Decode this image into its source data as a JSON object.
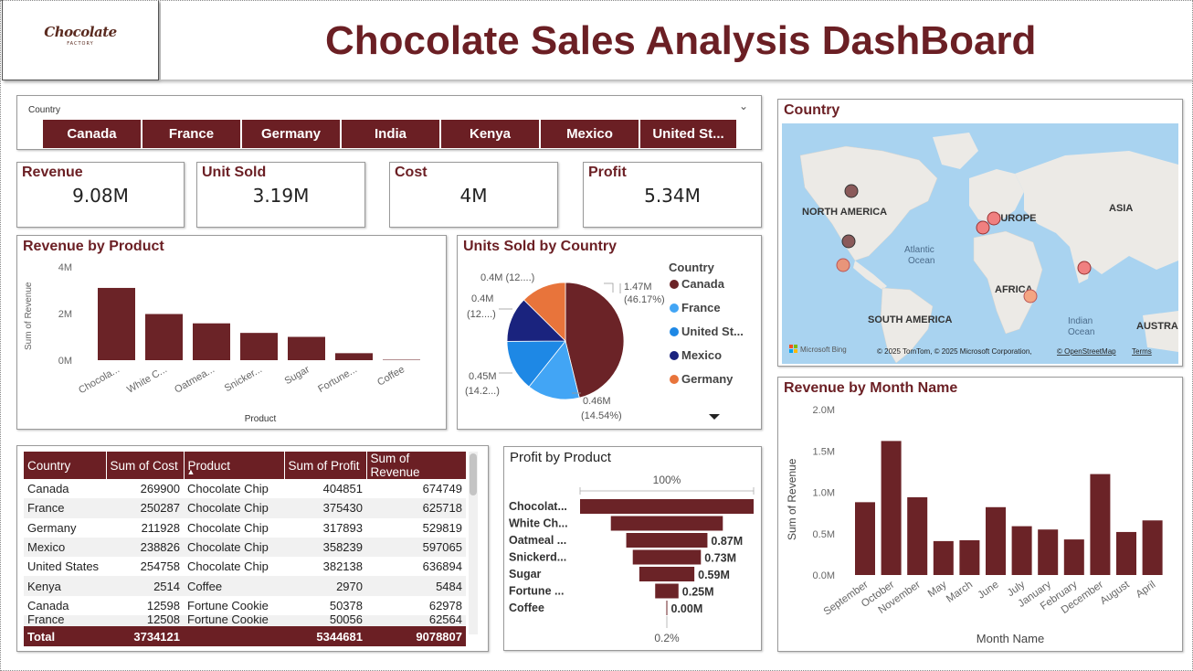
{
  "header": {
    "logo_text": "Chocolate",
    "logo_sub": "FACTORY",
    "title": "Chocolate Sales Analysis DashBoard"
  },
  "slicer": {
    "label": "Country",
    "options": [
      "Canada",
      "France",
      "Germany",
      "India",
      "Kenya",
      "Mexico",
      "United St..."
    ]
  },
  "kpis": [
    {
      "label": "Revenue",
      "value": "9.08M"
    },
    {
      "label": "Unit Sold",
      "value": "3.19M"
    },
    {
      "label": "Cost",
      "value": "4M"
    },
    {
      "label": "Profit",
      "value": "5.34M"
    }
  ],
  "revenue_by_product": {
    "title": "Revenue by Product",
    "chart_data": {
      "type": "bar",
      "categories": [
        "Chocola...",
        "White C...",
        "Oatmea...",
        "Snicker...",
        "Sugar",
        "Fortune...",
        "Coffee"
      ],
      "values": [
        3.1,
        1.98,
        1.58,
        1.17,
        1.0,
        0.3,
        0.02
      ],
      "xlabel": "Product",
      "ylabel": "Sum of Revenue",
      "yticks": [
        "0M",
        "2M",
        "4M"
      ],
      "ylim": [
        0,
        4
      ],
      "color": "#6b2327"
    }
  },
  "units_by_country": {
    "title": "Units Sold by Country",
    "legend_title": "Country",
    "chart_data": {
      "type": "pie",
      "slices": [
        {
          "name": "Canada",
          "value": 46.17,
          "color": "#6b2327"
        },
        {
          "name": "France",
          "value": 14.54,
          "color": "#42a5f5"
        },
        {
          "name": "United St...",
          "value": 14.2,
          "color": "#1e88e5"
        },
        {
          "name": "Mexico",
          "value": 12.5,
          "color": "#1a237e"
        },
        {
          "name": "Germany",
          "value": 12.59,
          "color": "#e8743b"
        }
      ]
    },
    "labels": {
      "canada_value": "1.47M",
      "canada_pct": "(46.17%)",
      "france_value": "0.46M",
      "france_pct": "(14.54%)",
      "us_value": "0.45M",
      "us_pct": "(14.2...)",
      "mexico_value": "0.4M",
      "mexico_pct": "(12....)",
      "germany_label": "0.4M (12....)"
    }
  },
  "map": {
    "title": "Country",
    "labels": {
      "north_america": "NORTH AMERICA",
      "europe": "EUROPE",
      "asia": "ASIA",
      "atlantic": "Atlantic",
      "ocean": "Ocean",
      "africa": "AFRICA",
      "south_america": "SOUTH AMERICA",
      "indian": "Indian",
      "indian_ocean": "Ocean",
      "australia": "AUSTRA"
    },
    "bing": "Microsoft Bing",
    "copyright": "© 2025 TomTom, © 2025 Microsoft Corporation,",
    "osm_link": "© OpenStreetMap",
    "terms_link": "Terms"
  },
  "table": {
    "columns": [
      "Country",
      "Sum of Cost",
      "Product",
      "Sum of Profit",
      "Sum of Revenue"
    ],
    "sort_indicator": "▲",
    "rows": [
      [
        "Canada",
        "269900",
        "Chocolate Chip",
        "404851",
        "674749"
      ],
      [
        "France",
        "250287",
        "Chocolate Chip",
        "375430",
        "625718"
      ],
      [
        "Germany",
        "211928",
        "Chocolate Chip",
        "317893",
        "529819"
      ],
      [
        "Mexico",
        "238826",
        "Chocolate Chip",
        "358239",
        "597065"
      ],
      [
        "United States",
        "254758",
        "Chocolate Chip",
        "382138",
        "636894"
      ],
      [
        "Kenya",
        "2514",
        "Coffee",
        "2970",
        "5484"
      ],
      [
        "Canada",
        "12598",
        "Fortune Cookie",
        "50378",
        "62978"
      ],
      [
        "France",
        "12508",
        "Fortune Cookie",
        "50056",
        "62564"
      ]
    ],
    "total": [
      "Total",
      "3734121",
      "",
      "5344681",
      "9078807"
    ]
  },
  "profit_by_product": {
    "title": "Profit by Product",
    "top_pct": "100%",
    "bottom_pct": "0.2%",
    "chart_data": {
      "type": "bar",
      "categories": [
        "Chocolat...",
        "White Ch...",
        "Oatmeal ...",
        "Snickerd...",
        "Sugar",
        "Fortune ...",
        "Coffee"
      ],
      "values": [
        1.86,
        1.2,
        0.87,
        0.73,
        0.59,
        0.25,
        0.0
      ],
      "value_labels": [
        "",
        "",
        "0.87M",
        "0.73M",
        "0.59M",
        "0.25M",
        "0.00M"
      ],
      "color": "#6b2327"
    }
  },
  "revenue_by_month": {
    "title": "Revenue by Month Name",
    "chart_data": {
      "type": "bar",
      "categories": [
        "September",
        "October",
        "November",
        "May",
        "March",
        "June",
        "July",
        "January",
        "February",
        "December",
        "August",
        "April"
      ],
      "values": [
        0.88,
        1.62,
        0.94,
        0.41,
        0.42,
        0.82,
        0.59,
        0.55,
        0.43,
        1.22,
        0.52,
        0.66
      ],
      "xlabel": "Month Name",
      "ylabel": "Sum of Revenue",
      "yticks": [
        "0.0M",
        "0.5M",
        "1.0M",
        "1.5M",
        "2.0M"
      ],
      "ylim": [
        0,
        2
      ],
      "color": "#6b2327"
    }
  }
}
